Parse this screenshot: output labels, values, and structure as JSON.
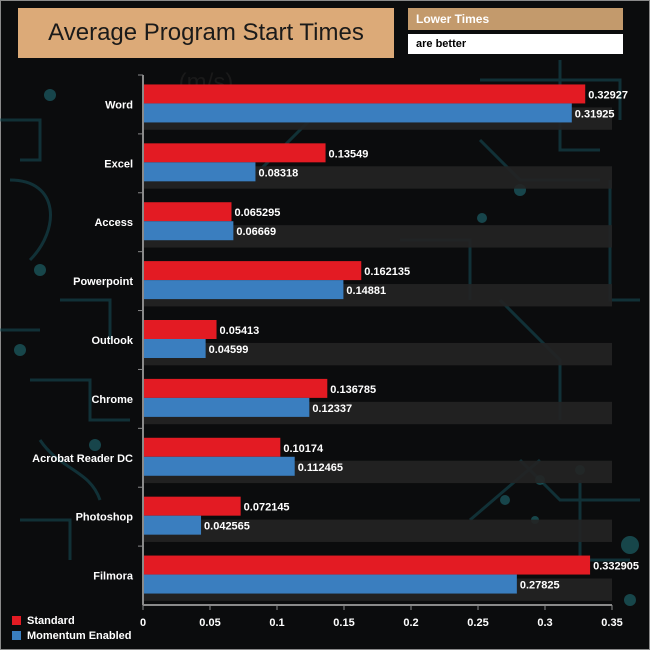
{
  "header": {
    "title": "Average Program Start Times (m/s)",
    "note_line1": "Lower Times",
    "note_line2": "are better"
  },
  "colors": {
    "standard": "#e31b23",
    "momentum": "#3a7ebf",
    "title_bg": "#dcaa78",
    "note_bg": "#c39a6c"
  },
  "chart_data": {
    "type": "bar",
    "orientation": "horizontal",
    "title": "Average Program Start Times (m/s)",
    "categories": [
      "Word",
      "Excel",
      "Access",
      "Powerpoint",
      "Outlook",
      "Chrome",
      "Acrobat Reader DC",
      "Photoshop",
      "Filmora"
    ],
    "series": [
      {
        "name": "Standard",
        "values": [
          0.32927,
          0.13549,
          0.065295,
          0.162135,
          0.05413,
          0.136785,
          0.10174,
          0.072145,
          0.332905
        ],
        "labels": [
          "0.32927",
          "0.13549",
          "0.065295",
          "0.162135",
          "0.05413",
          "0.136785",
          "0.10174",
          "0.072145",
          "0.332905"
        ]
      },
      {
        "name": "Momentum Enabled",
        "values": [
          0.31925,
          0.08318,
          0.06669,
          0.14881,
          0.04599,
          0.12337,
          0.112465,
          0.042565,
          0.27825
        ],
        "labels": [
          "0.31925",
          "0.08318",
          "0.06669",
          "0.14881",
          "0.04599",
          "0.12337",
          "0.112465",
          "0.042565",
          "0.27825"
        ]
      }
    ],
    "xlim": [
      0,
      0.35
    ],
    "ticks": [
      0,
      0.05,
      0.1,
      0.15,
      0.2,
      0.25,
      0.3,
      0.35
    ],
    "tick_labels": [
      "0",
      "0.05",
      "0.1",
      "0.15",
      "0.2",
      "0.25",
      "0.3",
      "0.35"
    ],
    "legend_position": "bottom-left"
  }
}
